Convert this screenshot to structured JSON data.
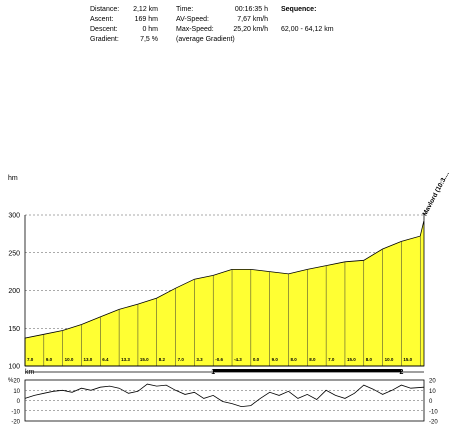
{
  "stats": {
    "rows": [
      {
        "label": "Distance:",
        "value": "2,12 km",
        "label2": "Time:",
        "value2": "00:16:35 h"
      },
      {
        "label": "Ascent:",
        "value": "169 hm",
        "label2": "AV-Speed:",
        "value2": "7,67 km/h"
      },
      {
        "label": "Descent:",
        "value": "0 hm",
        "label2": "Max-Speed:",
        "value2": "25,20 km/h"
      },
      {
        "label": "Gradient:",
        "value": "7,5 %",
        "label2": "(average Gradient)",
        "value2": ""
      }
    ],
    "sequence_label": "Sequence:",
    "sequence_value": "62,00 - 64,12 km"
  },
  "chart_data": [
    {
      "type": "area",
      "ylabel": "hm",
      "ylim": [
        100,
        300
      ],
      "yticks": [
        "300",
        "250",
        "200",
        "150",
        "100"
      ],
      "xlabel": "km",
      "xlim": [
        0,
        2.12
      ],
      "xticks": [
        "1",
        "2"
      ],
      "grid": true,
      "fill_color": "#ffff33",
      "x": [
        0,
        0.1,
        0.2,
        0.3,
        0.4,
        0.5,
        0.6,
        0.7,
        0.8,
        0.9,
        1.0,
        1.1,
        1.2,
        1.3,
        1.4,
        1.5,
        1.6,
        1.7,
        1.8,
        1.9,
        2.0,
        2.1,
        2.12
      ],
      "y": [
        137,
        142,
        147,
        155,
        165,
        175,
        182,
        190,
        203,
        215,
        220,
        228,
        228,
        225,
        222,
        228,
        233,
        238,
        240,
        255,
        265,
        272,
        293
      ],
      "segment_gradients": [
        "7.0",
        "9.0",
        "10.0",
        "13.0",
        "6.4",
        "13.3",
        "15.0",
        "8.2",
        "7.0",
        "3.3",
        "-0.6",
        "-4.3",
        "0.0",
        "9.0",
        "8.0",
        "8.0",
        "7.0",
        "15.0",
        "8.0",
        "10.0",
        "15.0"
      ],
      "annotation": "Mavlord (10:3...."
    },
    {
      "type": "line",
      "ylabel": "%",
      "ylim": [
        -20,
        20
      ],
      "yticks": [
        "20",
        "10",
        "0",
        "-10",
        "-20"
      ],
      "grid": true,
      "x": [
        0,
        0.05,
        0.1,
        0.15,
        0.2,
        0.25,
        0.3,
        0.35,
        0.4,
        0.45,
        0.5,
        0.55,
        0.6,
        0.65,
        0.7,
        0.75,
        0.8,
        0.85,
        0.9,
        0.95,
        1.0,
        1.05,
        1.1,
        1.15,
        1.2,
        1.25,
        1.3,
        1.35,
        1.4,
        1.45,
        1.5,
        1.55,
        1.6,
        1.65,
        1.7,
        1.75,
        1.8,
        1.85,
        1.9,
        1.95,
        2.0,
        2.05,
        2.12
      ],
      "y": [
        2,
        5,
        7,
        9,
        10,
        8,
        12,
        10,
        13,
        14,
        12,
        7,
        9,
        16,
        14,
        15,
        10,
        6,
        8,
        2,
        5,
        -1,
        -3,
        -6,
        -5,
        2,
        8,
        5,
        9,
        2,
        6,
        1,
        10,
        5,
        2,
        7,
        15,
        11,
        6,
        10,
        15,
        12,
        13
      ]
    }
  ]
}
